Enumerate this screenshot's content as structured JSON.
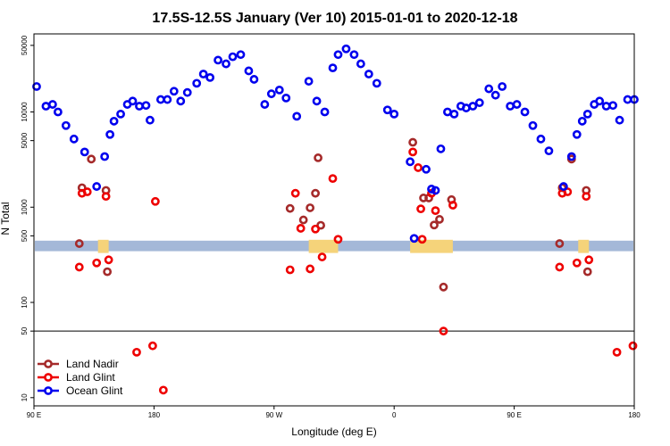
{
  "chart_data": {
    "type": "scatter",
    "title": "17.5S-12.5S January (Ver 10)   2015-01-01 to 2020-12-18",
    "xlabel": "Longitude (deg E)",
    "ylabel": "N Total",
    "x_scale": "linear",
    "y_scale": "log",
    "xlim": [
      90,
      540
    ],
    "ylim": [
      8.2,
      66000
    ],
    "x_ticks": [
      {
        "value": 90,
        "label": "90 E"
      },
      {
        "value": 180,
        "label": "180"
      },
      {
        "value": 270,
        "label": "90 W"
      },
      {
        "value": 360,
        "label": "0"
      },
      {
        "value": 450,
        "label": "90 E"
      },
      {
        "value": 540,
        "label": "180"
      }
    ],
    "y_ticks": [
      {
        "value": 10,
        "label": "10"
      },
      {
        "value": 50,
        "label": "50"
      },
      {
        "value": 100,
        "label": "100"
      },
      {
        "value": 500,
        "label": "500"
      },
      {
        "value": 1000,
        "label": "1000"
      },
      {
        "value": 5000,
        "label": "5000"
      },
      {
        "value": 10000,
        "label": "10000"
      },
      {
        "value": 50000,
        "label": "50000"
      }
    ],
    "reference_line": 50,
    "legend_position": "bottom-left",
    "colors": {
      "land_nadir": "#a52a2a",
      "land_glint": "#ee0000",
      "ocean_glint": "#0000ee",
      "ocean_band": "#a4b8d8",
      "land_band": "#f5d37a"
    },
    "series": [
      {
        "name": "Land Nadir",
        "color": "#a52a2a",
        "points": [
          [
            124,
            415
          ],
          [
            126,
            1600
          ],
          [
            133,
            3200
          ],
          [
            144,
            1500
          ],
          [
            145,
            210
          ],
          [
            282,
            970
          ],
          [
            292,
            735
          ],
          [
            297,
            985
          ],
          [
            301,
            1400
          ],
          [
            303,
            3300
          ],
          [
            305,
            645
          ],
          [
            374,
            4800
          ],
          [
            382,
            1250
          ],
          [
            386,
            1250
          ],
          [
            390,
            650
          ],
          [
            394,
            745
          ],
          [
            397,
            145
          ],
          [
            403,
            1200
          ],
          [
            484,
            415
          ],
          [
            486,
            1600
          ],
          [
            493,
            3200
          ],
          [
            504,
            1500
          ],
          [
            505,
            210
          ]
        ]
      },
      {
        "name": "Land Glint",
        "color": "#ee0000",
        "points": [
          [
            124,
            235
          ],
          [
            126,
            1400
          ],
          [
            130,
            1450
          ],
          [
            137,
            260
          ],
          [
            144,
            1300
          ],
          [
            146,
            280
          ],
          [
            167,
            30
          ],
          [
            179,
            35
          ],
          [
            181,
            1150
          ],
          [
            187,
            12
          ],
          [
            282,
            220
          ],
          [
            286,
            1400
          ],
          [
            290,
            600
          ],
          [
            297,
            225
          ],
          [
            301,
            590
          ],
          [
            306,
            300
          ],
          [
            314,
            2000
          ],
          [
            318,
            460
          ],
          [
            374,
            3800
          ],
          [
            378,
            2600
          ],
          [
            380,
            960
          ],
          [
            381,
            460
          ],
          [
            388,
            1400
          ],
          [
            391,
            920
          ],
          [
            397,
            50
          ],
          [
            404,
            1050
          ],
          [
            484,
            235
          ],
          [
            486,
            1400
          ],
          [
            490,
            1450
          ],
          [
            497,
            260
          ],
          [
            504,
            1300
          ],
          [
            506,
            280
          ],
          [
            527,
            30
          ],
          [
            539,
            35
          ]
        ]
      },
      {
        "name": "Ocean Glint",
        "color": "#0000ee",
        "points": [
          [
            92,
            18500
          ],
          [
            99,
            11500
          ],
          [
            104,
            12000
          ],
          [
            108,
            10000
          ],
          [
            114,
            7200
          ],
          [
            120,
            5200
          ],
          [
            128,
            3800
          ],
          [
            137,
            1650
          ],
          [
            143,
            3400
          ],
          [
            147,
            5800
          ],
          [
            150,
            8000
          ],
          [
            155,
            9500
          ],
          [
            160,
            12000
          ],
          [
            164,
            13000
          ],
          [
            169,
            11500
          ],
          [
            174,
            11700
          ],
          [
            177,
            8200
          ],
          [
            185,
            13500
          ],
          [
            190,
            13500
          ],
          [
            195,
            16500
          ],
          [
            200,
            13000
          ],
          [
            205,
            16000
          ],
          [
            212,
            20000
          ],
          [
            217,
            25000
          ],
          [
            222,
            23000
          ],
          [
            228,
            35000
          ],
          [
            234,
            32000
          ],
          [
            239,
            38000
          ],
          [
            245,
            40000
          ],
          [
            251,
            27000
          ],
          [
            255,
            22000
          ],
          [
            263,
            12000
          ],
          [
            268,
            15500
          ],
          [
            274,
            17000
          ],
          [
            279,
            14000
          ],
          [
            287,
            9000
          ],
          [
            296,
            21000
          ],
          [
            302,
            13000
          ],
          [
            308,
            10000
          ],
          [
            314,
            29000
          ],
          [
            318,
            40000
          ],
          [
            324,
            46000
          ],
          [
            330,
            40000
          ],
          [
            335,
            32000
          ],
          [
            341,
            25000
          ],
          [
            347,
            20000
          ],
          [
            355,
            10500
          ],
          [
            360,
            9500
          ],
          [
            372,
            3000
          ],
          [
            375,
            470
          ],
          [
            384,
            2500
          ],
          [
            388,
            1550
          ],
          [
            391,
            1500
          ],
          [
            395,
            4100
          ],
          [
            400,
            10000
          ],
          [
            405,
            9500
          ],
          [
            410,
            11500
          ],
          [
            414,
            11000
          ],
          [
            419,
            11500
          ],
          [
            424,
            12500
          ],
          [
            431,
            17500
          ],
          [
            436,
            15000
          ],
          [
            441,
            18500
          ],
          [
            447,
            11500
          ],
          [
            452,
            12000
          ],
          [
            458,
            10000
          ],
          [
            464,
            7200
          ],
          [
            470,
            5200
          ],
          [
            476,
            3900
          ],
          [
            487,
            1650
          ],
          [
            493,
            3400
          ],
          [
            497,
            5800
          ],
          [
            501,
            8000
          ],
          [
            505,
            9500
          ],
          [
            510,
            12000
          ],
          [
            514,
            13000
          ],
          [
            519,
            11500
          ],
          [
            524,
            11700
          ],
          [
            529,
            8200
          ],
          [
            535,
            13500
          ],
          [
            540,
            13500
          ]
        ]
      }
    ]
  },
  "bands": {
    "y_low": 345,
    "y_high": 445,
    "land_ranges": [
      {
        "from": 138,
        "to": 146
      },
      {
        "from": 296,
        "to": 318
      },
      {
        "from": 372,
        "to": 404
      },
      {
        "from": 498,
        "to": 506
      }
    ]
  },
  "legend": {
    "items": [
      {
        "label": "Land Nadir",
        "color": "#a52a2a"
      },
      {
        "label": "Land Glint",
        "color": "#ee0000"
      },
      {
        "label": "Ocean Glint",
        "color": "#0000ee"
      }
    ]
  }
}
